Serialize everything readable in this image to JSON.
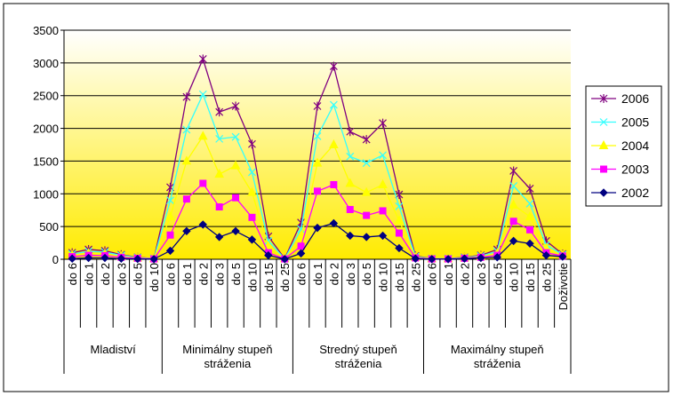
{
  "chart_data": {
    "type": "line",
    "ylim": [
      0,
      3500
    ],
    "yticks": [
      0,
      500,
      1000,
      1500,
      2000,
      2500,
      3000,
      3500
    ],
    "grid": true,
    "legend_position": "right",
    "categories": [
      "do 6",
      "do 1",
      "do 2",
      "do 3",
      "do 5",
      "do 10",
      "do 6",
      "do 1",
      "do 2",
      "do 3",
      "do 5",
      "do 10",
      "do 15",
      "do 25",
      "do 6",
      "do 1",
      "do 2",
      "do 3",
      "do 5",
      "do 10",
      "do 15",
      "do 25",
      "do 6",
      "do 1",
      "do 2",
      "do 3",
      "do 5",
      "do 10",
      "do 15",
      "do 25",
      "Doživotie"
    ],
    "groups": [
      {
        "label": "Mladiství",
        "count": 6
      },
      {
        "label": "Minimálny stupeň stráženia",
        "count": 8
      },
      {
        "label": "Stredný stupeň stráženia",
        "count": 8
      },
      {
        "label": "Maximálny stupeň stráženia",
        "count": 9
      }
    ],
    "series": [
      {
        "name": "2006",
        "color": "#800080",
        "marker": "star",
        "values": [
          100,
          150,
          130,
          70,
          30,
          10,
          1100,
          2480,
          3060,
          2250,
          2340,
          1760,
          350,
          10,
          560,
          2340,
          2950,
          1950,
          1830,
          2080,
          990,
          50,
          10,
          10,
          30,
          60,
          150,
          1350,
          1080,
          280,
          80
        ]
      },
      {
        "name": "2005",
        "color": "#33FFFF",
        "marker": "x",
        "values": [
          80,
          120,
          110,
          60,
          25,
          10,
          900,
          1980,
          2520,
          1840,
          1870,
          1330,
          280,
          10,
          460,
          1880,
          2360,
          1570,
          1470,
          1590,
          810,
          40,
          10,
          10,
          25,
          50,
          120,
          1120,
          850,
          220,
          70
        ]
      },
      {
        "name": "2004",
        "color": "#FFFF00",
        "marker": "triangle",
        "values": [
          60,
          90,
          80,
          45,
          20,
          8,
          650,
          1500,
          1880,
          1300,
          1430,
          1020,
          200,
          8,
          330,
          1470,
          1750,
          1160,
          1020,
          1140,
          590,
          30,
          8,
          8,
          20,
          40,
          90,
          830,
          650,
          170,
          60
        ]
      },
      {
        "name": "2003",
        "color": "#FF00FF",
        "marker": "square",
        "values": [
          40,
          60,
          55,
          30,
          15,
          5,
          370,
          920,
          1160,
          800,
          940,
          640,
          100,
          5,
          200,
          1040,
          1140,
          760,
          670,
          740,
          400,
          20,
          5,
          5,
          15,
          30,
          60,
          580,
          450,
          100,
          50
        ]
      },
      {
        "name": "2002",
        "color": "#000080",
        "marker": "diamond",
        "values": [
          10,
          20,
          20,
          10,
          5,
          3,
          130,
          430,
          530,
          340,
          430,
          300,
          60,
          3,
          90,
          480,
          550,
          360,
          340,
          360,
          170,
          10,
          3,
          3,
          10,
          20,
          30,
          280,
          240,
          60,
          40
        ]
      }
    ]
  }
}
